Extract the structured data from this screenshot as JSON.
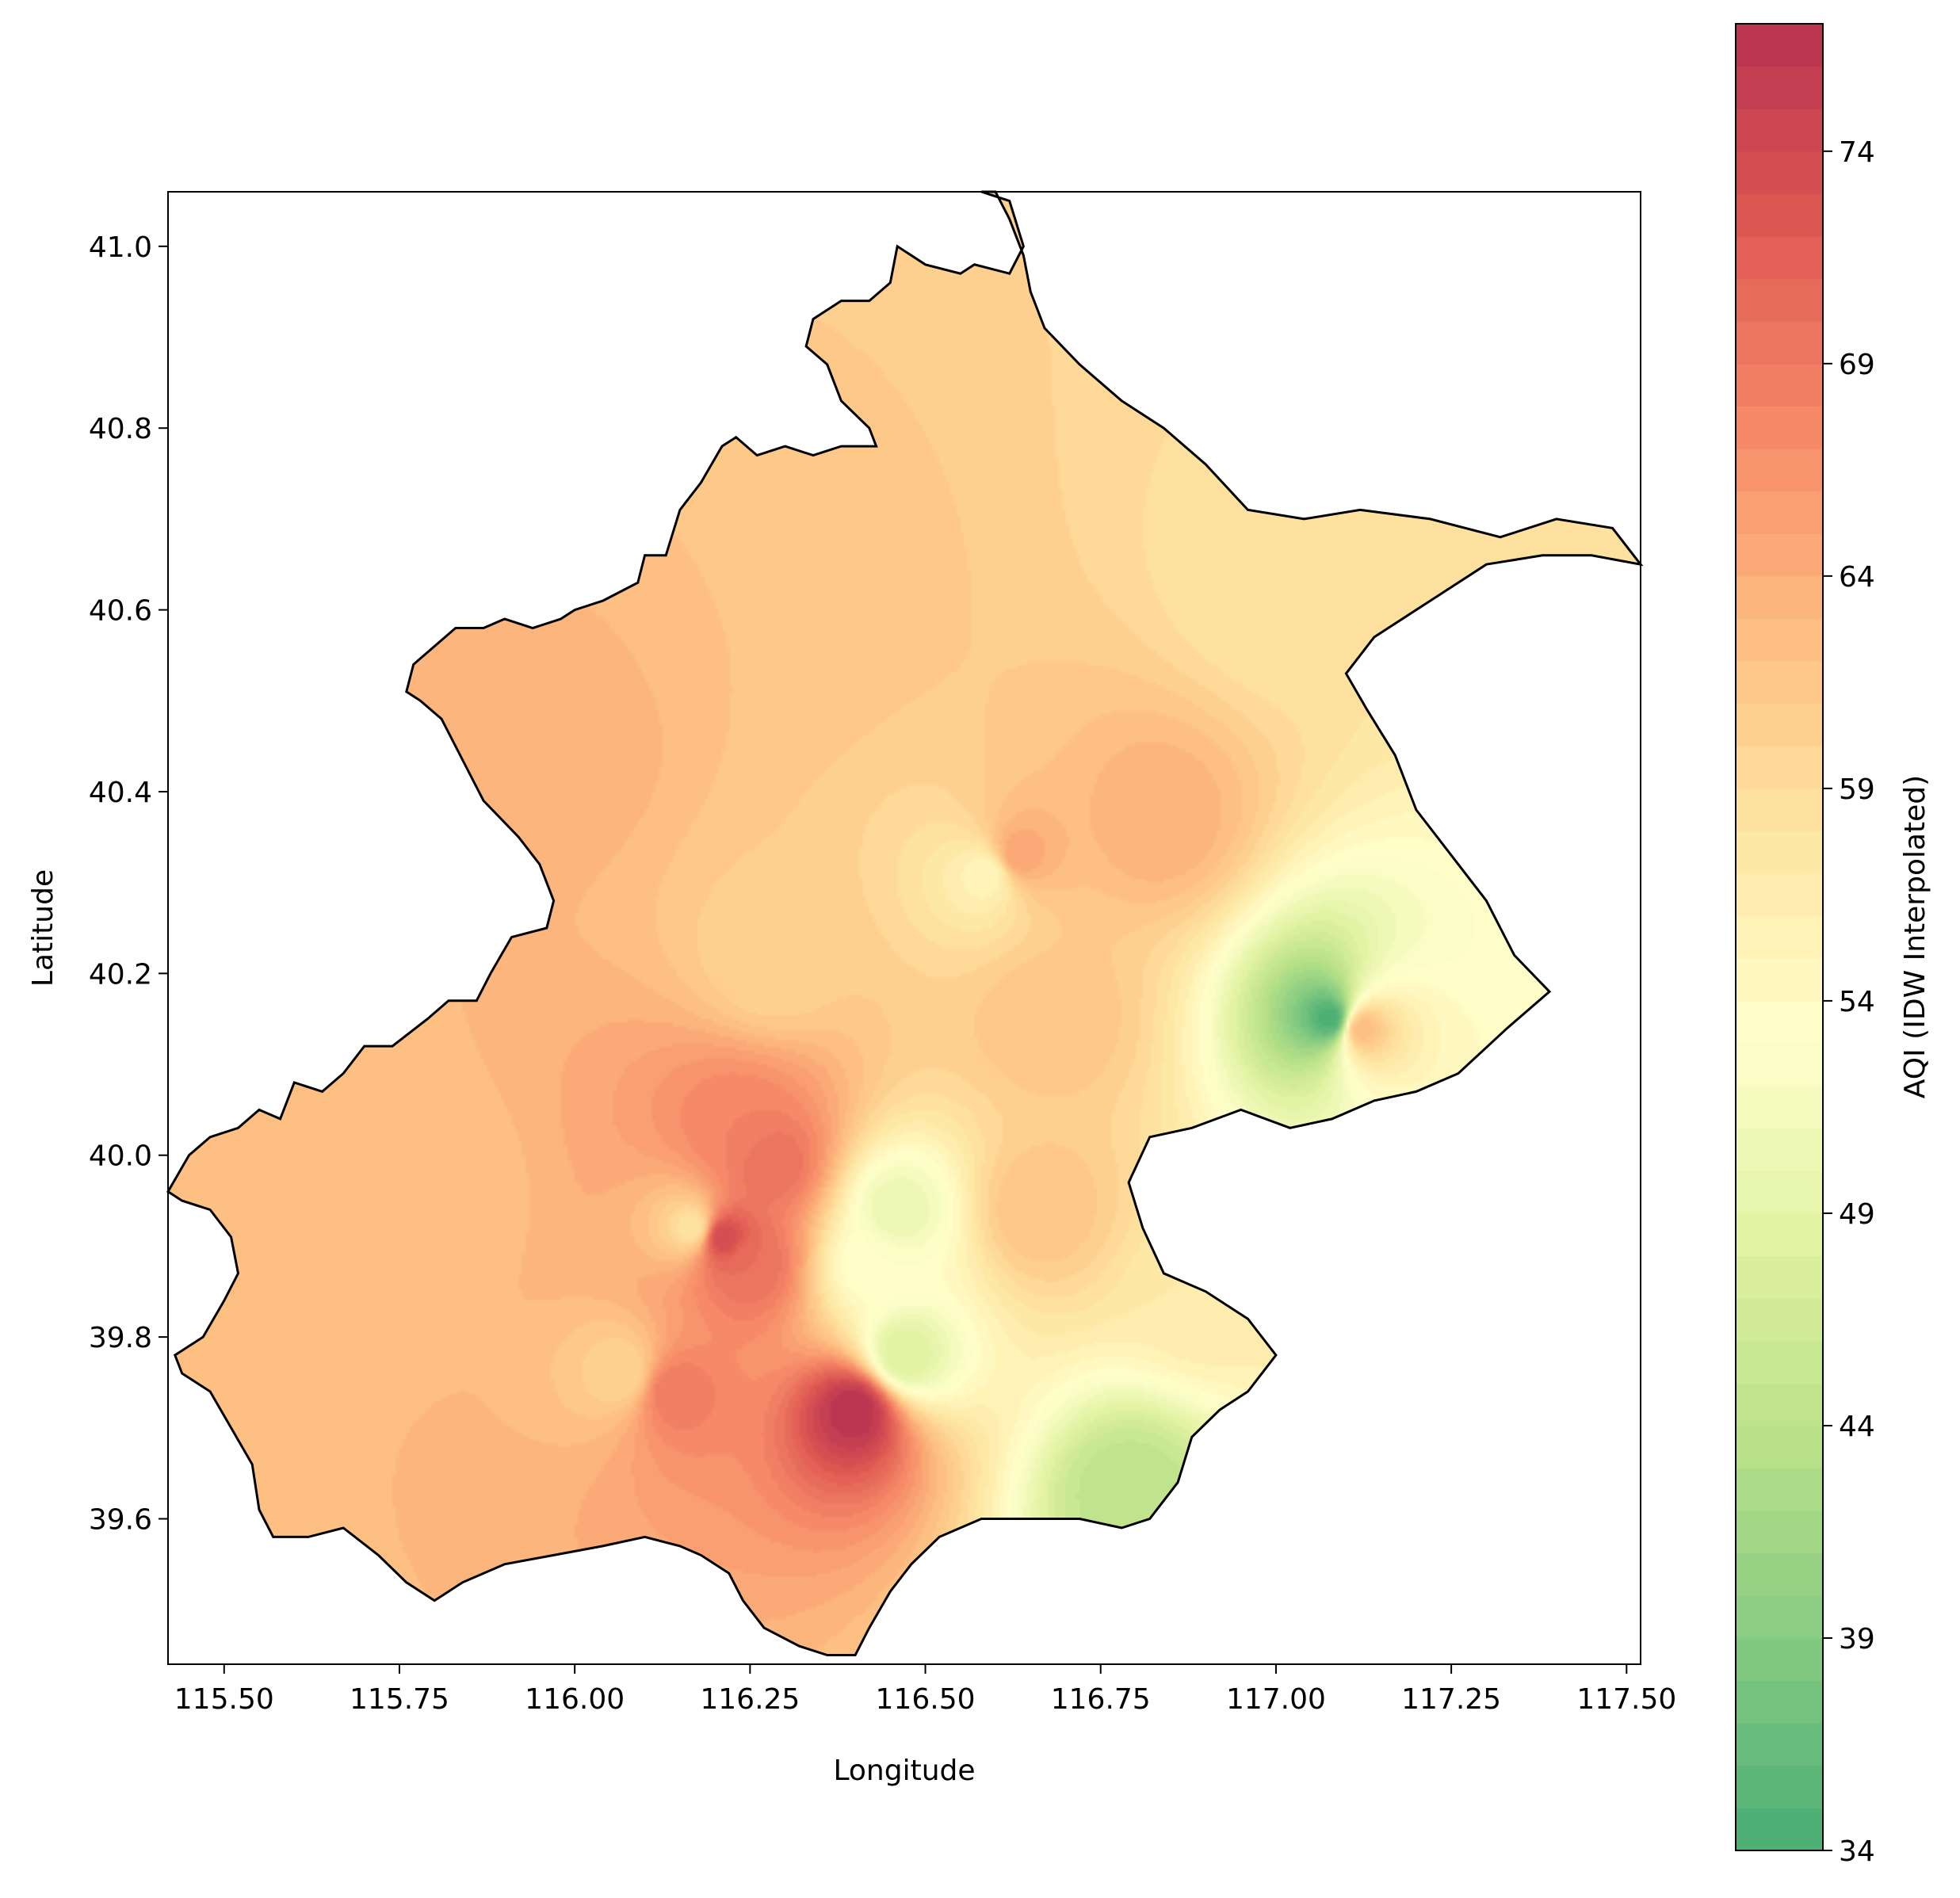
{
  "chart_data": {
    "type": "heatmap",
    "title": "",
    "xlabel": "Longitude",
    "ylabel": "Latitude",
    "xlim": [
      115.42,
      117.52
    ],
    "ylim": [
      39.44,
      41.06
    ],
    "x_ticks": [
      "115.50",
      "115.75",
      "116.00",
      "116.25",
      "116.50",
      "116.75",
      "117.00",
      "117.25",
      "117.50"
    ],
    "x_tick_values": [
      115.5,
      115.75,
      116.0,
      116.25,
      116.5,
      116.75,
      117.0,
      117.25,
      117.5
    ],
    "y_ticks": [
      "39.6",
      "39.8",
      "40.0",
      "40.2",
      "40.4",
      "40.6",
      "40.8",
      "41.0"
    ],
    "y_tick_values": [
      39.6,
      39.8,
      40.0,
      40.2,
      40.4,
      40.6,
      40.8,
      41.0
    ],
    "colorbar": {
      "label": "AQI (IDW Interpolated)",
      "min": 34,
      "max": 77,
      "ticks": [
        "34",
        "39",
        "44",
        "49",
        "54",
        "59",
        "64",
        "69",
        "74"
      ],
      "tick_values": [
        34,
        39,
        44,
        49,
        54,
        59,
        64,
        69,
        74
      ],
      "colormap": "RdYlGn_r",
      "stops": [
        "#1a9850",
        "#66bd63",
        "#a6d96a",
        "#d9ef8b",
        "#ffffbf",
        "#fee08b",
        "#fdae61",
        "#f46d43",
        "#d73027",
        "#a50026"
      ]
    },
    "base_value": 59,
    "stations": [
      {
        "lon": 115.96,
        "lat": 40.45,
        "aqi": 64
      },
      {
        "lon": 116.21,
        "lat": 39.91,
        "aqi": 74
      },
      {
        "lon": 116.4,
        "lat": 39.72,
        "aqi": 77
      },
      {
        "lon": 116.14,
        "lat": 39.74,
        "aqi": 69
      },
      {
        "lon": 116.23,
        "lat": 40.03,
        "aqi": 68
      },
      {
        "lon": 116.28,
        "lat": 39.99,
        "aqi": 70
      },
      {
        "lon": 116.25,
        "lat": 39.88,
        "aqi": 70
      },
      {
        "lon": 116.17,
        "lat": 39.92,
        "aqi": 58
      },
      {
        "lon": 116.46,
        "lat": 39.94,
        "aqi": 50
      },
      {
        "lon": 116.42,
        "lat": 39.88,
        "aqi": 53
      },
      {
        "lon": 116.47,
        "lat": 39.78,
        "aqi": 48
      },
      {
        "lon": 116.59,
        "lat": 40.31,
        "aqi": 55
      },
      {
        "lon": 116.63,
        "lat": 40.33,
        "aqi": 65
      },
      {
        "lon": 116.83,
        "lat": 40.37,
        "aqi": 64
      },
      {
        "lon": 117.08,
        "lat": 40.15,
        "aqi": 34
      },
      {
        "lon": 117.12,
        "lat": 40.14,
        "aqi": 63
      },
      {
        "lon": 116.79,
        "lat": 39.63,
        "aqi": 44
      },
      {
        "lon": 116.07,
        "lat": 39.76,
        "aqi": 60
      },
      {
        "lon": 116.28,
        "lat": 40.21,
        "aqi": 60
      },
      {
        "lon": 116.68,
        "lat": 40.15,
        "aqi": 62
      },
      {
        "lon": 116.66,
        "lat": 39.94,
        "aqi": 62
      },
      {
        "lon": 117.0,
        "lat": 40.62,
        "aqi": 58
      },
      {
        "lon": 116.3,
        "lat": 40.6,
        "aqi": 62
      },
      {
        "lon": 115.8,
        "lat": 39.95,
        "aqi": 62
      },
      {
        "lon": 116.9,
        "lat": 39.85,
        "aqi": 57
      }
    ],
    "boundary": [
      [
        116.58,
        41.06
      ],
      [
        116.62,
        41.05
      ],
      [
        116.64,
        41.0
      ],
      [
        116.62,
        40.97
      ],
      [
        116.57,
        40.98
      ],
      [
        116.55,
        40.97
      ],
      [
        116.5,
        40.98
      ],
      [
        116.46,
        41.0
      ],
      [
        116.45,
        40.96
      ],
      [
        116.42,
        40.94
      ],
      [
        116.38,
        40.94
      ],
      [
        116.34,
        40.92
      ],
      [
        116.33,
        40.89
      ],
      [
        116.36,
        40.87
      ],
      [
        116.38,
        40.83
      ],
      [
        116.42,
        40.8
      ],
      [
        116.43,
        40.78
      ],
      [
        116.38,
        40.78
      ],
      [
        116.34,
        40.77
      ],
      [
        116.3,
        40.78
      ],
      [
        116.26,
        40.77
      ],
      [
        116.23,
        40.79
      ],
      [
        116.21,
        40.78
      ],
      [
        116.18,
        40.74
      ],
      [
        116.15,
        40.71
      ],
      [
        116.13,
        40.66
      ],
      [
        116.1,
        40.66
      ],
      [
        116.09,
        40.63
      ],
      [
        116.04,
        40.61
      ],
      [
        116.0,
        40.6
      ],
      [
        115.98,
        40.59
      ],
      [
        115.94,
        40.58
      ],
      [
        115.9,
        40.59
      ],
      [
        115.87,
        40.58
      ],
      [
        115.83,
        40.58
      ],
      [
        115.8,
        40.56
      ],
      [
        115.77,
        40.54
      ],
      [
        115.76,
        40.51
      ],
      [
        115.78,
        40.5
      ],
      [
        115.81,
        40.48
      ],
      [
        115.85,
        40.42
      ],
      [
        115.87,
        40.39
      ],
      [
        115.92,
        40.35
      ],
      [
        115.95,
        40.32
      ],
      [
        115.97,
        40.28
      ],
      [
        115.96,
        40.25
      ],
      [
        115.91,
        40.24
      ],
      [
        115.88,
        40.2
      ],
      [
        115.86,
        40.17
      ],
      [
        115.82,
        40.17
      ],
      [
        115.79,
        40.15
      ],
      [
        115.74,
        40.12
      ],
      [
        115.7,
        40.12
      ],
      [
        115.67,
        40.09
      ],
      [
        115.64,
        40.07
      ],
      [
        115.6,
        40.08
      ],
      [
        115.58,
        40.04
      ],
      [
        115.55,
        40.05
      ],
      [
        115.52,
        40.03
      ],
      [
        115.48,
        40.02
      ],
      [
        115.45,
        40.0
      ],
      [
        115.42,
        39.96
      ],
      [
        115.44,
        39.95
      ],
      [
        115.48,
        39.94
      ],
      [
        115.51,
        39.91
      ],
      [
        115.52,
        39.87
      ],
      [
        115.5,
        39.84
      ],
      [
        115.47,
        39.8
      ],
      [
        115.43,
        39.78
      ],
      [
        115.44,
        39.76
      ],
      [
        115.48,
        39.74
      ],
      [
        115.51,
        39.7
      ],
      [
        115.54,
        39.66
      ],
      [
        115.55,
        39.61
      ],
      [
        115.57,
        39.58
      ],
      [
        115.62,
        39.58
      ],
      [
        115.67,
        39.59
      ],
      [
        115.72,
        39.56
      ],
      [
        115.76,
        39.53
      ],
      [
        115.8,
        39.51
      ],
      [
        115.84,
        39.53
      ],
      [
        115.9,
        39.55
      ],
      [
        115.97,
        39.56
      ],
      [
        116.04,
        39.57
      ],
      [
        116.1,
        39.58
      ],
      [
        116.15,
        39.57
      ],
      [
        116.18,
        39.56
      ],
      [
        116.22,
        39.54
      ],
      [
        116.24,
        39.51
      ],
      [
        116.27,
        39.48
      ],
      [
        116.32,
        39.46
      ],
      [
        116.36,
        39.45
      ],
      [
        116.4,
        39.45
      ],
      [
        116.42,
        39.48
      ],
      [
        116.45,
        39.52
      ],
      [
        116.48,
        39.55
      ],
      [
        116.52,
        39.58
      ],
      [
        116.58,
        39.6
      ],
      [
        116.66,
        39.6
      ],
      [
        116.72,
        39.6
      ],
      [
        116.78,
        39.59
      ],
      [
        116.82,
        39.6
      ],
      [
        116.86,
        39.64
      ],
      [
        116.88,
        39.69
      ],
      [
        116.92,
        39.72
      ],
      [
        116.96,
        39.74
      ],
      [
        117.0,
        39.78
      ],
      [
        116.96,
        39.82
      ],
      [
        116.9,
        39.85
      ],
      [
        116.84,
        39.87
      ],
      [
        116.81,
        39.92
      ],
      [
        116.79,
        39.97
      ],
      [
        116.82,
        40.02
      ],
      [
        116.88,
        40.03
      ],
      [
        116.95,
        40.05
      ],
      [
        117.02,
        40.03
      ],
      [
        117.08,
        40.04
      ],
      [
        117.14,
        40.06
      ],
      [
        117.2,
        40.07
      ],
      [
        117.26,
        40.09
      ],
      [
        117.33,
        40.14
      ],
      [
        117.39,
        40.18
      ],
      [
        117.34,
        40.22
      ],
      [
        117.3,
        40.28
      ],
      [
        117.25,
        40.33
      ],
      [
        117.2,
        40.38
      ],
      [
        117.17,
        40.44
      ],
      [
        117.13,
        40.49
      ],
      [
        117.1,
        40.53
      ],
      [
        117.14,
        40.57
      ],
      [
        117.22,
        40.61
      ],
      [
        117.3,
        40.65
      ],
      [
        117.38,
        40.66
      ],
      [
        117.45,
        40.66
      ],
      [
        117.52,
        40.65
      ],
      [
        117.48,
        40.69
      ],
      [
        117.4,
        40.7
      ],
      [
        117.32,
        40.68
      ],
      [
        117.22,
        40.7
      ],
      [
        117.12,
        40.71
      ],
      [
        117.04,
        40.7
      ],
      [
        116.96,
        40.71
      ],
      [
        116.9,
        40.76
      ],
      [
        116.84,
        40.8
      ],
      [
        116.78,
        40.83
      ],
      [
        116.72,
        40.87
      ],
      [
        116.67,
        40.91
      ],
      [
        116.65,
        40.95
      ],
      [
        116.64,
        40.99
      ],
      [
        116.62,
        41.03
      ],
      [
        116.6,
        41.06
      ]
    ]
  }
}
